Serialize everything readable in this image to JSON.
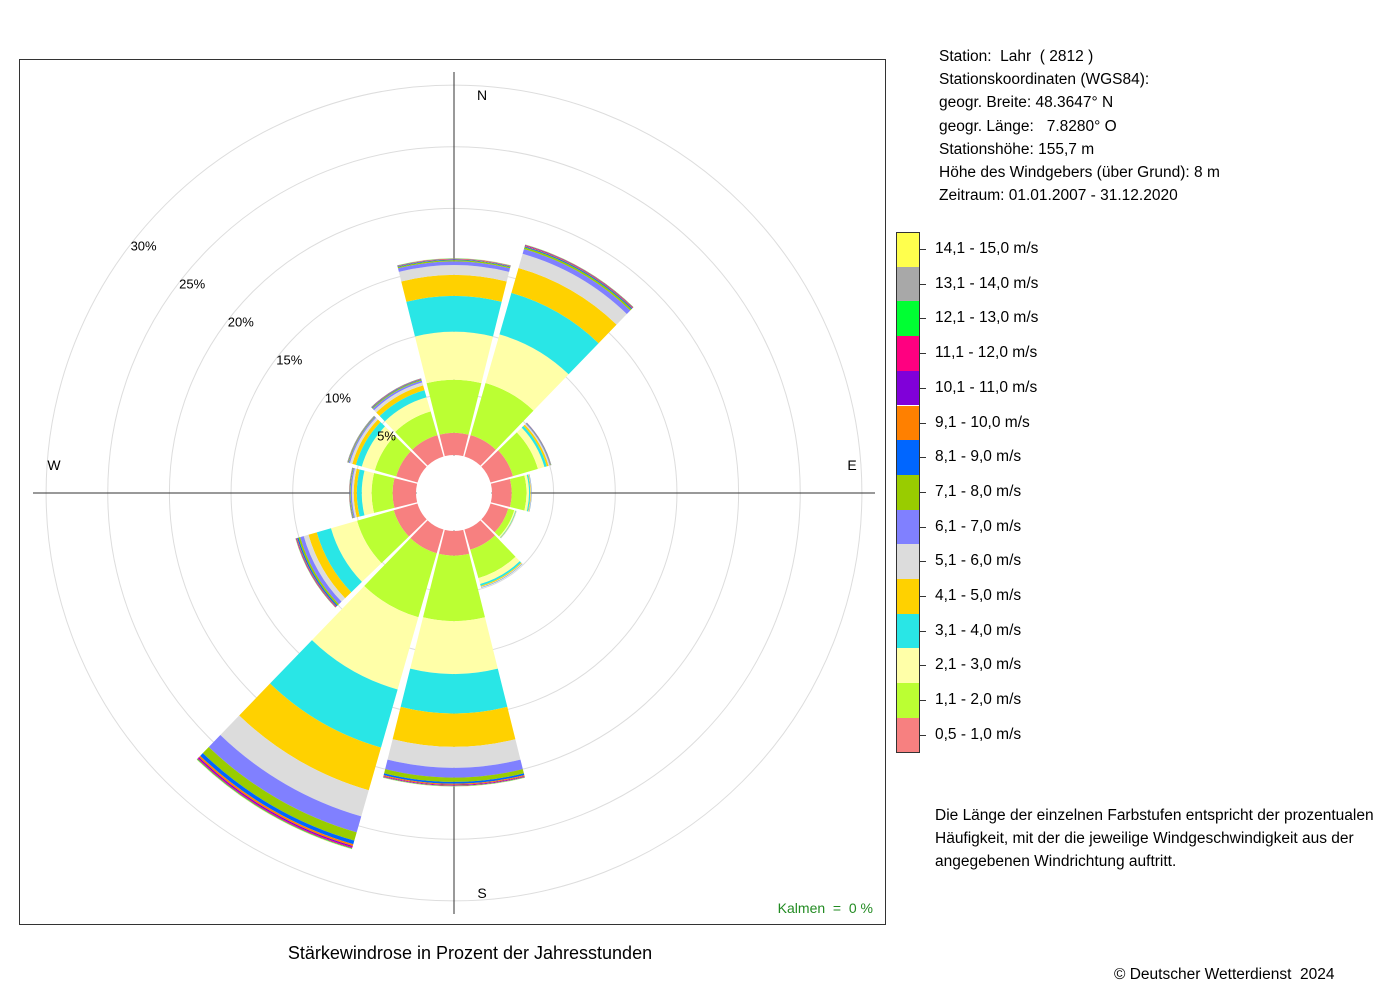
{
  "caption": "Stärkewindrose in Prozent der Jahresstunden",
  "station_info": [
    "Station:  Lahr  ( 2812 )",
    "Stationskoordinaten (WGS84):",
    "geogr. Breite: 48.3647° N",
    "geogr. Länge:   7.8280° O",
    "Stationshöhe: 155,7 m",
    "Höhe des Windgebers (über Grund): 8 m",
    "Zeitraum: 01.01.2007 - 31.12.2020"
  ],
  "note": "Die Länge der einzelnen Farbstufen entspricht der prozentualen Häufigkeit, mit der die jeweilige Windgeschwindigkeit aus der angegebenen Windrichtung auftritt.",
  "copyright": "© Deutscher Wetterdienst  2024",
  "calm_label": "Kalmen  =  0 %",
  "chart_data": {
    "type": "wind-rose",
    "title": "Stärkewindrose in Prozent der Jahresstunden",
    "radial_unit": "%",
    "radial_ticks": [
      5,
      10,
      15,
      20,
      25,
      30
    ],
    "radial_tick_labels": [
      "5%",
      "10%",
      "15%",
      "20%",
      "25%",
      "30%"
    ],
    "max_radius": 30,
    "compass_labels": [
      "N",
      "E",
      "S",
      "W"
    ],
    "calm_percent": 0,
    "grid": true,
    "speed_classes": [
      {
        "label": "0,5 - 1,0 m/s",
        "color": "#f78080"
      },
      {
        "label": "1,1 - 2,0 m/s",
        "color": "#bbff33"
      },
      {
        "label": "2,1 - 3,0 m/s",
        "color": "#ffffa8"
      },
      {
        "label": "3,1 - 4,0 m/s",
        "color": "#29e6e6"
      },
      {
        "label": "4,1 - 5,0 m/s",
        "color": "#ffd100"
      },
      {
        "label": "5,1 - 6,0 m/s",
        "color": "#dcdcdc"
      },
      {
        "label": "6,1 - 7,0 m/s",
        "color": "#8080ff"
      },
      {
        "label": "7,1 - 8,0 m/s",
        "color": "#99cc00"
      },
      {
        "label": "8,1 - 9,0 m/s",
        "color": "#0066ff"
      },
      {
        "label": "9,1 - 10,0 m/s",
        "color": "#ff8000"
      },
      {
        "label": "10,1 - 11,0 m/s",
        "color": "#8000d9"
      },
      {
        "label": "11,1 - 12,0 m/s",
        "color": "#ff0080"
      },
      {
        "label": "12,1 - 13,0 m/s",
        "color": "#00ff33"
      },
      {
        "label": "13,1 - 14,0 m/s",
        "color": "#a8a8a8"
      },
      {
        "label": "14,1 - 15,0 m/s",
        "color": "#ffff4d"
      }
    ],
    "sectors": [
      {
        "direction_deg": 0,
        "values": [
          1.8,
          4.3,
          3.9,
          2.9,
          1.7,
          0.8,
          0.3,
          0.1,
          0.05,
          0.03,
          0.02,
          0.02,
          0.02,
          0.01,
          0.01
        ]
      },
      {
        "direction_deg": 30,
        "values": [
          1.8,
          4.4,
          4.1,
          3.5,
          2.1,
          1.2,
          0.4,
          0.15,
          0.08,
          0.05,
          0.04,
          0.03,
          0.02,
          0.01,
          0.01
        ]
      },
      {
        "direction_deg": 60,
        "values": [
          1.9,
          2.1,
          0.55,
          0.2,
          0.15,
          0.1,
          0.05,
          0.03,
          0.02,
          0.01,
          0.01,
          0.01,
          0.01,
          0.0,
          0.0
        ]
      },
      {
        "direction_deg": 90,
        "values": [
          1.6,
          1.2,
          0.2,
          0.1,
          0.05,
          0.03,
          0.02,
          0.01,
          0.01,
          0.0,
          0.0,
          0.0,
          0.0,
          0.0,
          0.0
        ]
      },
      {
        "direction_deg": 120,
        "values": [
          1.5,
          0.5,
          0.1,
          0.05,
          0.03,
          0.02,
          0.01,
          0.0,
          0.0,
          0.0,
          0.0,
          0.0,
          0.0,
          0.0,
          0.0
        ]
      },
      {
        "direction_deg": 150,
        "values": [
          1.7,
          2.4,
          0.5,
          0.15,
          0.08,
          0.05,
          0.02,
          0.01,
          0.01,
          0.0,
          0.0,
          0.0,
          0.0,
          0.0,
          0.0
        ]
      },
      {
        "direction_deg": 180,
        "values": [
          2.0,
          5.3,
          4.3,
          3.2,
          2.7,
          1.7,
          0.8,
          0.35,
          0.15,
          0.08,
          0.05,
          0.04,
          0.03,
          0.02,
          0.01
        ]
      },
      {
        "direction_deg": 210,
        "values": [
          2.0,
          5.4,
          6.1,
          4.9,
          3.6,
          2.2,
          1.35,
          0.7,
          0.3,
          0.15,
          0.1,
          0.08,
          0.05,
          0.03,
          0.02
        ]
      },
      {
        "direction_deg": 240,
        "values": [
          2.0,
          3.1,
          2.2,
          1.2,
          0.7,
          0.4,
          0.3,
          0.15,
          0.1,
          0.05,
          0.04,
          0.03,
          0.02,
          0.01,
          0.01
        ]
      },
      {
        "direction_deg": 270,
        "values": [
          1.9,
          1.7,
          0.8,
          0.4,
          0.25,
          0.15,
          0.1,
          0.05,
          0.03,
          0.02,
          0.01,
          0.01,
          0.01,
          0.0,
          0.0
        ]
      },
      {
        "direction_deg": 300,
        "values": [
          1.8,
          1.8,
          1.1,
          0.5,
          0.3,
          0.2,
          0.1,
          0.05,
          0.03,
          0.02,
          0.01,
          0.01,
          0.01,
          0.0,
          0.0
        ]
      },
      {
        "direction_deg": 330,
        "values": [
          1.8,
          2.0,
          1.2,
          0.6,
          0.4,
          0.25,
          0.15,
          0.08,
          0.05,
          0.03,
          0.02,
          0.01,
          0.01,
          0.0,
          0.0
        ]
      }
    ]
  }
}
